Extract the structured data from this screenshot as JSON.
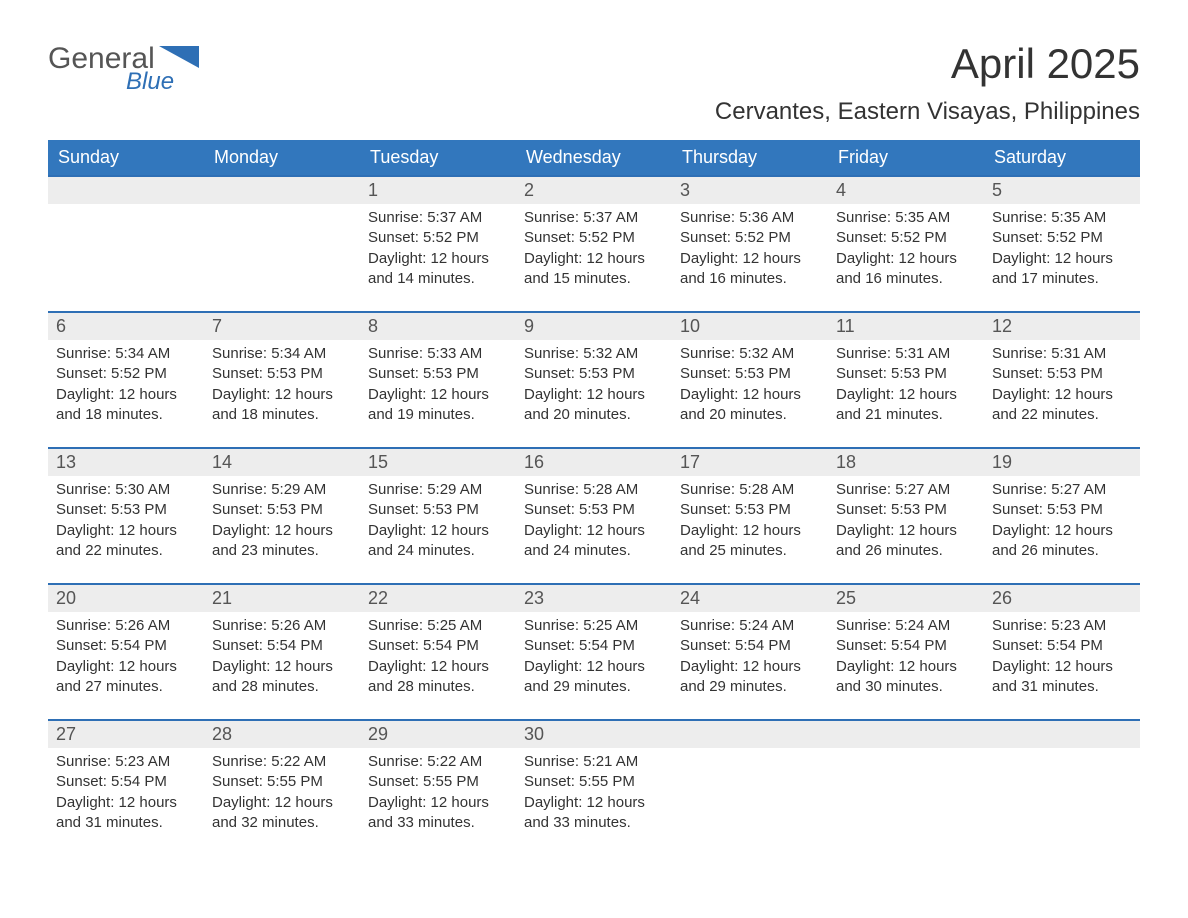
{
  "brand": {
    "top": "General",
    "bottom": "Blue",
    "accent": "#2e6fb5"
  },
  "title": "April 2025",
  "subtitle": "Cervantes, Eastern Visayas, Philippines",
  "colors": {
    "header_bg": "#3277bd",
    "header_text": "#ffffff",
    "daynum_bg": "#ededed",
    "week_border": "#2e6fb5",
    "page_bg": "#ffffff",
    "text": "#333333"
  },
  "daysOfWeek": [
    "Sunday",
    "Monday",
    "Tuesday",
    "Wednesday",
    "Thursday",
    "Friday",
    "Saturday"
  ],
  "weeks": [
    [
      {
        "n": "",
        "sr": "",
        "ss": "",
        "dl": ""
      },
      {
        "n": "",
        "sr": "",
        "ss": "",
        "dl": ""
      },
      {
        "n": "1",
        "sr": "5:37 AM",
        "ss": "5:52 PM",
        "dl": "12 hours and 14 minutes."
      },
      {
        "n": "2",
        "sr": "5:37 AM",
        "ss": "5:52 PM",
        "dl": "12 hours and 15 minutes."
      },
      {
        "n": "3",
        "sr": "5:36 AM",
        "ss": "5:52 PM",
        "dl": "12 hours and 16 minutes."
      },
      {
        "n": "4",
        "sr": "5:35 AM",
        "ss": "5:52 PM",
        "dl": "12 hours and 16 minutes."
      },
      {
        "n": "5",
        "sr": "5:35 AM",
        "ss": "5:52 PM",
        "dl": "12 hours and 17 minutes."
      }
    ],
    [
      {
        "n": "6",
        "sr": "5:34 AM",
        "ss": "5:52 PM",
        "dl": "12 hours and 18 minutes."
      },
      {
        "n": "7",
        "sr": "5:34 AM",
        "ss": "5:53 PM",
        "dl": "12 hours and 18 minutes."
      },
      {
        "n": "8",
        "sr": "5:33 AM",
        "ss": "5:53 PM",
        "dl": "12 hours and 19 minutes."
      },
      {
        "n": "9",
        "sr": "5:32 AM",
        "ss": "5:53 PM",
        "dl": "12 hours and 20 minutes."
      },
      {
        "n": "10",
        "sr": "5:32 AM",
        "ss": "5:53 PM",
        "dl": "12 hours and 20 minutes."
      },
      {
        "n": "11",
        "sr": "5:31 AM",
        "ss": "5:53 PM",
        "dl": "12 hours and 21 minutes."
      },
      {
        "n": "12",
        "sr": "5:31 AM",
        "ss": "5:53 PM",
        "dl": "12 hours and 22 minutes."
      }
    ],
    [
      {
        "n": "13",
        "sr": "5:30 AM",
        "ss": "5:53 PM",
        "dl": "12 hours and 22 minutes."
      },
      {
        "n": "14",
        "sr": "5:29 AM",
        "ss": "5:53 PM",
        "dl": "12 hours and 23 minutes."
      },
      {
        "n": "15",
        "sr": "5:29 AM",
        "ss": "5:53 PM",
        "dl": "12 hours and 24 minutes."
      },
      {
        "n": "16",
        "sr": "5:28 AM",
        "ss": "5:53 PM",
        "dl": "12 hours and 24 minutes."
      },
      {
        "n": "17",
        "sr": "5:28 AM",
        "ss": "5:53 PM",
        "dl": "12 hours and 25 minutes."
      },
      {
        "n": "18",
        "sr": "5:27 AM",
        "ss": "5:53 PM",
        "dl": "12 hours and 26 minutes."
      },
      {
        "n": "19",
        "sr": "5:27 AM",
        "ss": "5:53 PM",
        "dl": "12 hours and 26 minutes."
      }
    ],
    [
      {
        "n": "20",
        "sr": "5:26 AM",
        "ss": "5:54 PM",
        "dl": "12 hours and 27 minutes."
      },
      {
        "n": "21",
        "sr": "5:26 AM",
        "ss": "5:54 PM",
        "dl": "12 hours and 28 minutes."
      },
      {
        "n": "22",
        "sr": "5:25 AM",
        "ss": "5:54 PM",
        "dl": "12 hours and 28 minutes."
      },
      {
        "n": "23",
        "sr": "5:25 AM",
        "ss": "5:54 PM",
        "dl": "12 hours and 29 minutes."
      },
      {
        "n": "24",
        "sr": "5:24 AM",
        "ss": "5:54 PM",
        "dl": "12 hours and 29 minutes."
      },
      {
        "n": "25",
        "sr": "5:24 AM",
        "ss": "5:54 PM",
        "dl": "12 hours and 30 minutes."
      },
      {
        "n": "26",
        "sr": "5:23 AM",
        "ss": "5:54 PM",
        "dl": "12 hours and 31 minutes."
      }
    ],
    [
      {
        "n": "27",
        "sr": "5:23 AM",
        "ss": "5:54 PM",
        "dl": "12 hours and 31 minutes."
      },
      {
        "n": "28",
        "sr": "5:22 AM",
        "ss": "5:55 PM",
        "dl": "12 hours and 32 minutes."
      },
      {
        "n": "29",
        "sr": "5:22 AM",
        "ss": "5:55 PM",
        "dl": "12 hours and 33 minutes."
      },
      {
        "n": "30",
        "sr": "5:21 AM",
        "ss": "5:55 PM",
        "dl": "12 hours and 33 minutes."
      },
      {
        "n": "",
        "sr": "",
        "ss": "",
        "dl": ""
      },
      {
        "n": "",
        "sr": "",
        "ss": "",
        "dl": ""
      },
      {
        "n": "",
        "sr": "",
        "ss": "",
        "dl": ""
      }
    ]
  ],
  "labels": {
    "sunrise": "Sunrise: ",
    "sunset": "Sunset: ",
    "daylight": "Daylight: "
  }
}
